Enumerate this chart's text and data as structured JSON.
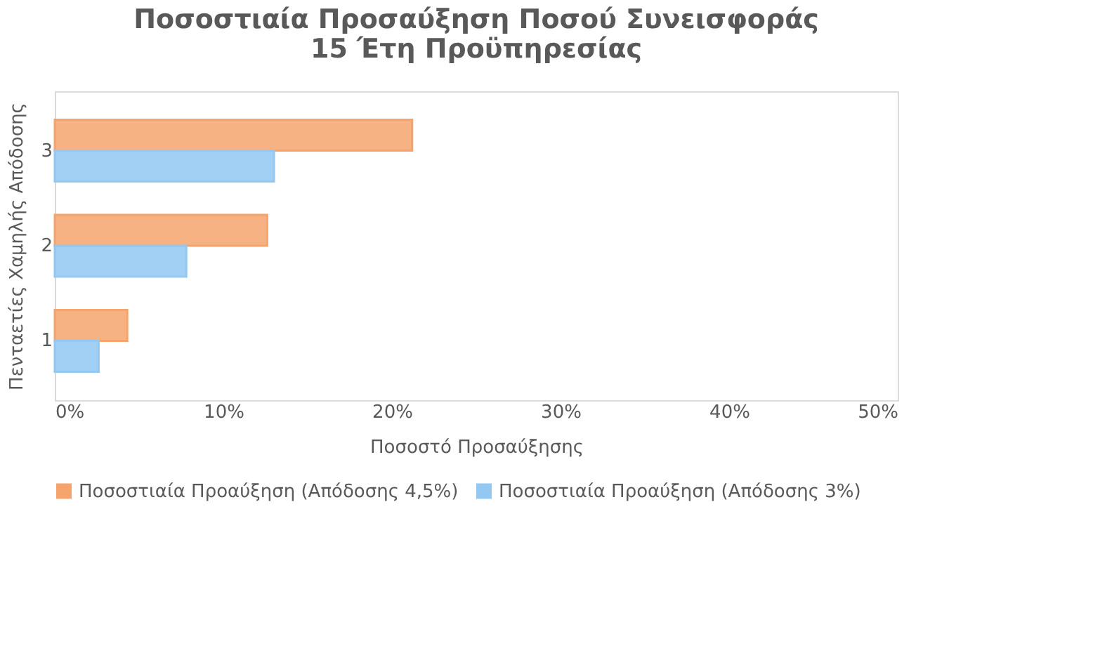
{
  "chart_data": {
    "type": "bar",
    "orientation": "horizontal",
    "title": "Ποσοστιαία Προσαύξηση Ποσού Συνεισφοράς\n15 Έτη Προϋπηρεσίας",
    "xlabel": "Ποσοστό Προσαύξησης",
    "ylabel": "Πενταετίες Χαμηλής Απόδοσης",
    "categories": [
      "3",
      "2",
      "1"
    ],
    "series": [
      {
        "name": "Ποσοστιαία Προαύξηση (Απόδοσης 4,5%)",
        "color": "#f4a46c",
        "values": [
          21.2,
          12.6,
          4.3
        ]
      },
      {
        "name": "Ποσοστιαία Προαύξηση (Απόδοσης 3%)",
        "color": "#92c8f2",
        "values": [
          13.0,
          7.8,
          2.6
        ]
      }
    ],
    "xlim": [
      0,
      50
    ],
    "xticks": [
      {
        "value": 0,
        "label": "0%"
      },
      {
        "value": 10,
        "label": "10%"
      },
      {
        "value": 20,
        "label": "20%"
      },
      {
        "value": 30,
        "label": "30%"
      },
      {
        "value": 40,
        "label": "40%"
      },
      {
        "value": 50,
        "label": "50%"
      }
    ],
    "grid": false,
    "legend": "bottom"
  }
}
